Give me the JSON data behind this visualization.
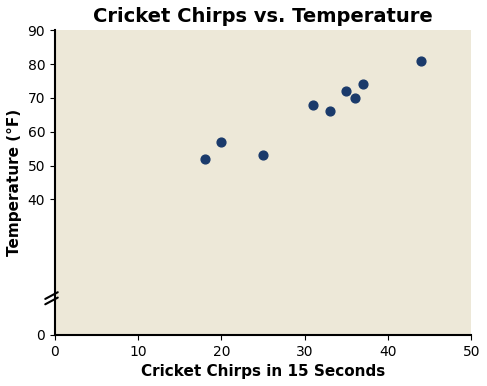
{
  "title": "Cricket Chirps vs. Temperature",
  "xlabel": "Cricket Chirps in 15 Seconds",
  "ylabel": "Temperature (°F)",
  "x_data": [
    18,
    20,
    25,
    31,
    33,
    35,
    36,
    37,
    44
  ],
  "y_data": [
    52,
    57,
    53,
    68,
    66,
    72,
    70,
    74,
    81
  ],
  "xlim": [
    0,
    50
  ],
  "ylim": [
    0,
    90
  ],
  "xticks": [
    0,
    10,
    20,
    30,
    40,
    50
  ],
  "yticks": [
    0,
    40,
    50,
    60,
    70,
    80,
    90
  ],
  "dot_color": "#1a3a6b",
  "bg_color": "#ede8d8",
  "dot_size": 40,
  "title_fontsize": 14,
  "label_fontsize": 11,
  "tick_fontsize": 10
}
